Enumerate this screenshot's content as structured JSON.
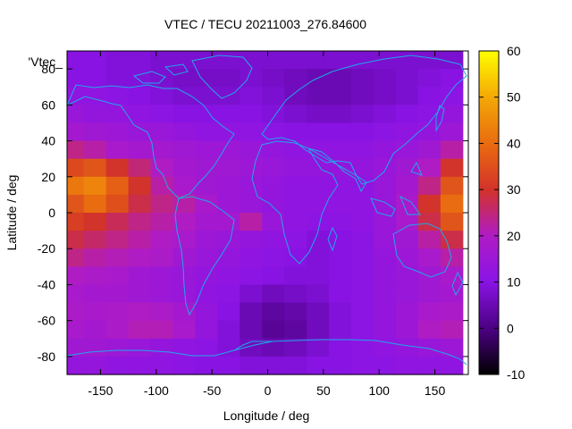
{
  "chart_data": {
    "type": "heatmap",
    "title": "VTEC / TECU 20211003_276.84600",
    "xlabel": "Longitude / deg",
    "ylabel": "Latitude / deg",
    "key_label": "'Vtec_",
    "xlim": [
      -180,
      180
    ],
    "ylim": [
      -90,
      90
    ],
    "xticks": [
      -150,
      -100,
      -50,
      0,
      50,
      100,
      150
    ],
    "yticks": [
      -80,
      -60,
      -40,
      -20,
      0,
      20,
      40,
      60,
      80
    ],
    "colorbar": {
      "range": [
        -10,
        60
      ],
      "ticks": [
        -10,
        0,
        10,
        20,
        30,
        40,
        50,
        60
      ]
    },
    "grid": false,
    "overlay": "coastlines",
    "z_grid": {
      "lon": [
        -175,
        -155,
        -135,
        -115,
        -95,
        -75,
        -55,
        -35,
        -15,
        5,
        25,
        45,
        65,
        85,
        105,
        125,
        145,
        165
      ],
      "lat": [
        85,
        75,
        65,
        55,
        45,
        35,
        25,
        15,
        5,
        -5,
        -15,
        -25,
        -35,
        -45,
        -55,
        -65,
        -75,
        -85
      ],
      "values": [
        [
          10,
          10,
          9,
          9,
          8,
          8,
          8,
          8,
          8,
          8,
          8,
          8,
          8,
          8,
          8,
          8,
          8,
          8
        ],
        [
          10,
          10,
          9,
          9,
          8,
          7,
          7,
          7,
          8,
          7,
          6,
          5,
          5,
          6,
          7,
          8,
          9,
          10
        ],
        [
          12,
          12,
          11,
          10,
          9,
          8,
          8,
          8,
          9,
          8,
          6,
          5,
          5,
          6,
          7,
          8,
          10,
          11
        ],
        [
          14,
          13,
          13,
          12,
          11,
          10,
          10,
          10,
          10,
          9,
          8,
          7,
          7,
          8,
          9,
          10,
          11,
          13
        ],
        [
          17,
          16,
          15,
          14,
          14,
          13,
          12,
          12,
          12,
          11,
          10,
          10,
          10,
          10,
          11,
          12,
          13,
          15
        ],
        [
          24,
          22,
          18,
          17,
          17,
          16,
          15,
          15,
          14,
          13,
          12,
          12,
          12,
          12,
          13,
          14,
          16,
          22
        ],
        [
          34,
          36,
          30,
          25,
          20,
          17,
          16,
          16,
          15,
          14,
          13,
          13,
          13,
          13,
          14,
          16,
          20,
          30
        ],
        [
          42,
          44,
          38,
          30,
          22,
          18,
          16,
          15,
          14,
          13,
          12,
          12,
          12,
          12,
          14,
          17,
          24,
          36
        ],
        [
          36,
          40,
          35,
          28,
          24,
          22,
          18,
          15,
          14,
          13,
          12,
          12,
          12,
          12,
          14,
          18,
          30,
          40
        ],
        [
          32,
          30,
          27,
          24,
          22,
          20,
          17,
          17,
          22,
          14,
          12,
          11,
          11,
          12,
          14,
          18,
          28,
          36
        ],
        [
          28,
          26,
          24,
          22,
          20,
          18,
          15,
          14,
          13,
          12,
          11,
          9,
          10,
          11,
          14,
          16,
          22,
          28
        ],
        [
          24,
          22,
          21,
          20,
          19,
          16,
          14,
          13,
          12,
          11,
          10,
          9,
          10,
          11,
          13,
          15,
          18,
          22
        ],
        [
          20,
          19,
          18,
          16,
          15,
          14,
          13,
          12,
          11,
          10,
          9,
          9,
          10,
          11,
          13,
          14,
          16,
          18
        ],
        [
          18,
          17,
          17,
          16,
          15,
          14,
          12,
          11,
          8,
          6,
          7,
          8,
          10,
          11,
          13,
          14,
          16,
          17
        ],
        [
          19,
          18,
          19,
          20,
          19,
          17,
          13,
          10,
          5,
          3,
          4,
          6,
          9,
          11,
          13,
          15,
          18,
          19
        ],
        [
          18,
          17,
          19,
          21,
          21,
          18,
          13,
          9,
          5,
          2,
          3,
          6,
          9,
          11,
          13,
          15,
          20,
          21
        ],
        [
          16,
          16,
          15,
          14,
          13,
          12,
          11,
          9,
          6,
          5,
          6,
          8,
          10,
          11,
          12,
          13,
          14,
          15
        ],
        [
          13,
          13,
          12,
          12,
          12,
          11,
          10,
          10,
          9,
          9,
          9,
          10,
          10,
          11,
          11,
          12,
          12,
          12
        ]
      ]
    }
  }
}
